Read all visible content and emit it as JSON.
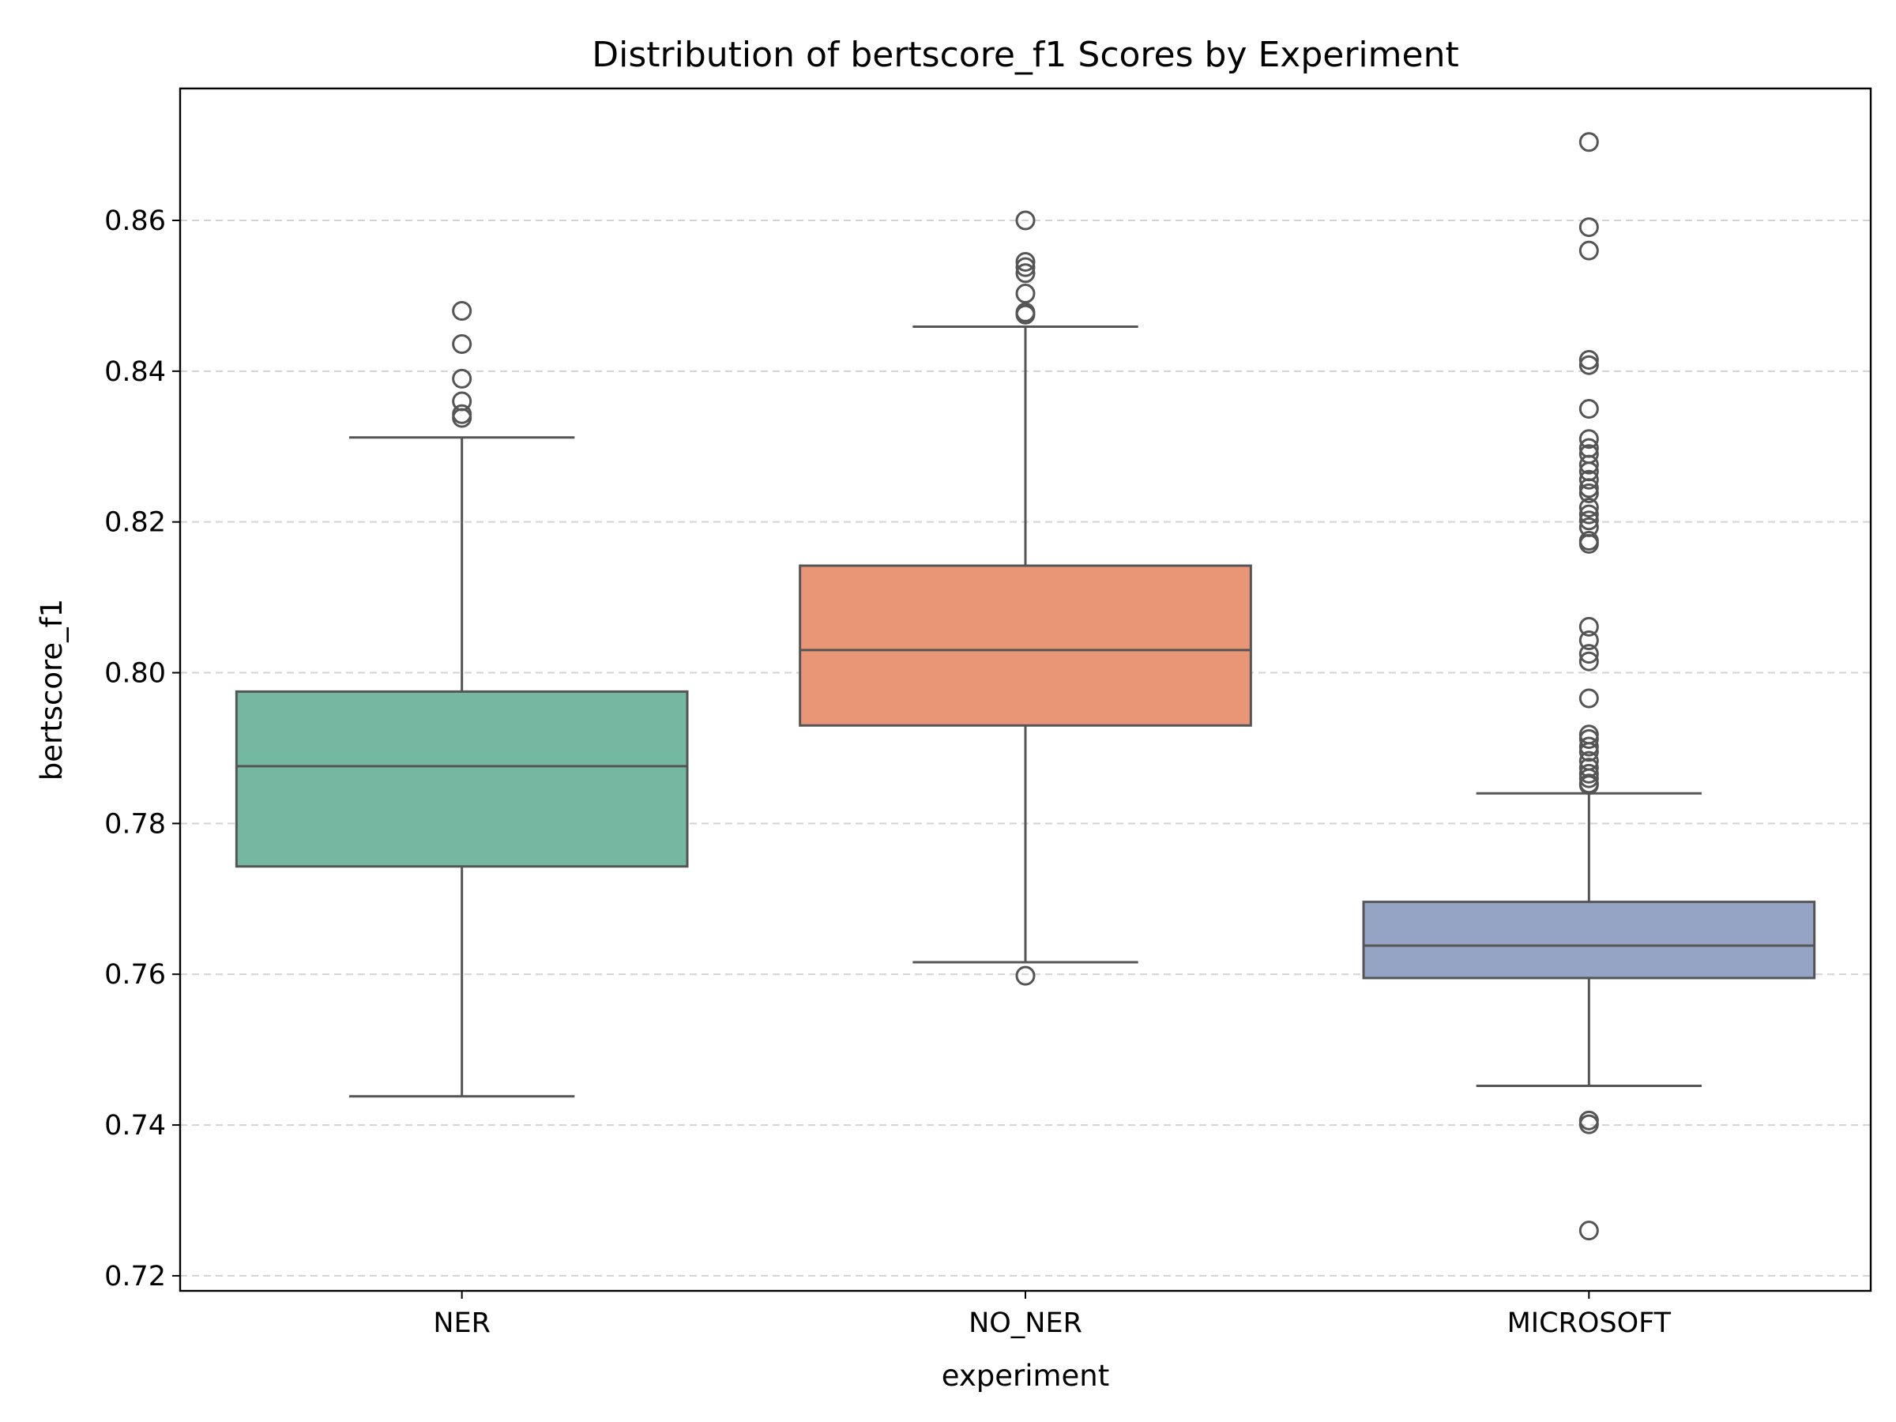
{
  "chart_data": {
    "type": "box",
    "title": "Distribution of bertscore_f1 Scores by Experiment",
    "xlabel": "experiment",
    "ylabel": "bertscore_f1",
    "ylim": [
      0.718,
      0.8775
    ],
    "yticks": [
      "0.72",
      "0.74",
      "0.76",
      "0.78",
      "0.80",
      "0.82",
      "0.84",
      "0.86"
    ],
    "grid": "horizontal dashed",
    "categories": [
      "NER",
      "NO_NER",
      "MICROSOFT"
    ],
    "boxes": [
      {
        "name": "NER",
        "color": "#75b8a1",
        "whisker_low": 0.7438,
        "q1": 0.7743,
        "median": 0.7876,
        "q3": 0.7975,
        "whisker_high": 0.8312,
        "outliers": [
          0.848,
          0.8436,
          0.839,
          0.836,
          0.8343,
          0.8338
        ]
      },
      {
        "name": "NO_NER",
        "color": "#e89676",
        "whisker_low": 0.7616,
        "q1": 0.793,
        "median": 0.803,
        "q3": 0.8142,
        "whisker_high": 0.8459,
        "outliers": [
          0.86,
          0.8545,
          0.8538,
          0.853,
          0.8503,
          0.8478,
          0.8475,
          0.7598
        ]
      },
      {
        "name": "MICROSOFT",
        "color": "#95a4c4",
        "whisker_low": 0.7452,
        "q1": 0.7595,
        "median": 0.7638,
        "q3": 0.7696,
        "whisker_high": 0.784,
        "outliers": [
          0.8704,
          0.8591,
          0.856,
          0.8415,
          0.8408,
          0.835,
          0.831,
          0.8298,
          0.829,
          0.8276,
          0.8267,
          0.8256,
          0.8245,
          0.8238,
          0.8219,
          0.821,
          0.8202,
          0.8193,
          0.8175,
          0.8171,
          0.8061,
          0.8043,
          0.8025,
          0.8015,
          0.7966,
          0.7918,
          0.7912,
          0.7902,
          0.7895,
          0.7883,
          0.7874,
          0.7866,
          0.786,
          0.7853,
          0.7851,
          0.7406,
          0.7401,
          0.726
        ]
      }
    ]
  }
}
